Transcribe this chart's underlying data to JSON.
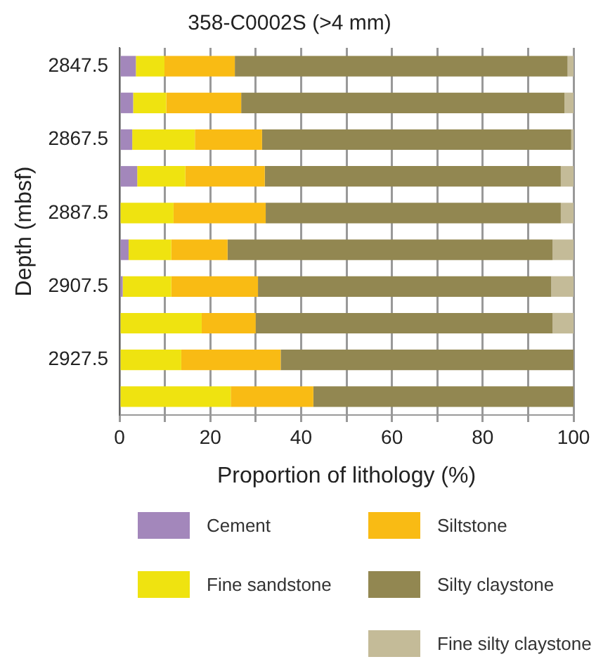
{
  "chart_data": {
    "type": "bar",
    "orientation": "horizontal",
    "stacked": true,
    "title": "358-C0002S (>4 mm)",
    "xlabel": "Proportion of lithology (%)",
    "ylabel": "Depth (mbsf)",
    "categories": [
      "2847.5",
      null,
      "2867.5",
      null,
      "2887.5",
      null,
      "2907.5",
      null,
      "2927.5",
      null
    ],
    "series": [
      {
        "name": "Cement",
        "color": "#a387bb",
        "values": [
          3.6,
          3.0,
          2.8,
          3.9,
          0,
          2.0,
          0.7,
          0,
          0,
          0
        ]
      },
      {
        "name": "Fine sandstone",
        "color": "#efe310",
        "values": [
          6.3,
          7.3,
          13.8,
          10.6,
          11.9,
          9.4,
          10.7,
          18.1,
          13.6,
          24.5
        ]
      },
      {
        "name": "Siltstone",
        "color": "#f9bb14",
        "values": [
          15.5,
          16.5,
          14.8,
          17.5,
          20.3,
          12.4,
          19.1,
          11.9,
          21.9,
          18.2
        ]
      },
      {
        "name": "Silty claystone",
        "color": "#928751",
        "values": [
          73.3,
          71.2,
          68.1,
          65.2,
          65.0,
          71.6,
          64.6,
          65.4,
          64.5,
          57.3
        ]
      },
      {
        "name": "Fine silty claystone",
        "color": "#c4bb98",
        "values": [
          1.3,
          2.0,
          0.5,
          2.8,
          2.8,
          4.6,
          4.9,
          4.6,
          0,
          0
        ]
      }
    ],
    "xlim": [
      0,
      100
    ],
    "xticks": [
      0,
      {
        "value": 10,
        "label": null
      },
      20,
      {
        "value": 30,
        "label": null
      },
      40,
      {
        "value": 50,
        "label": null
      },
      60,
      {
        "value": 70,
        "label": null
      },
      80,
      {
        "value": 90,
        "label": null
      },
      100
    ],
    "grid": "x",
    "legend": "bottom"
  }
}
